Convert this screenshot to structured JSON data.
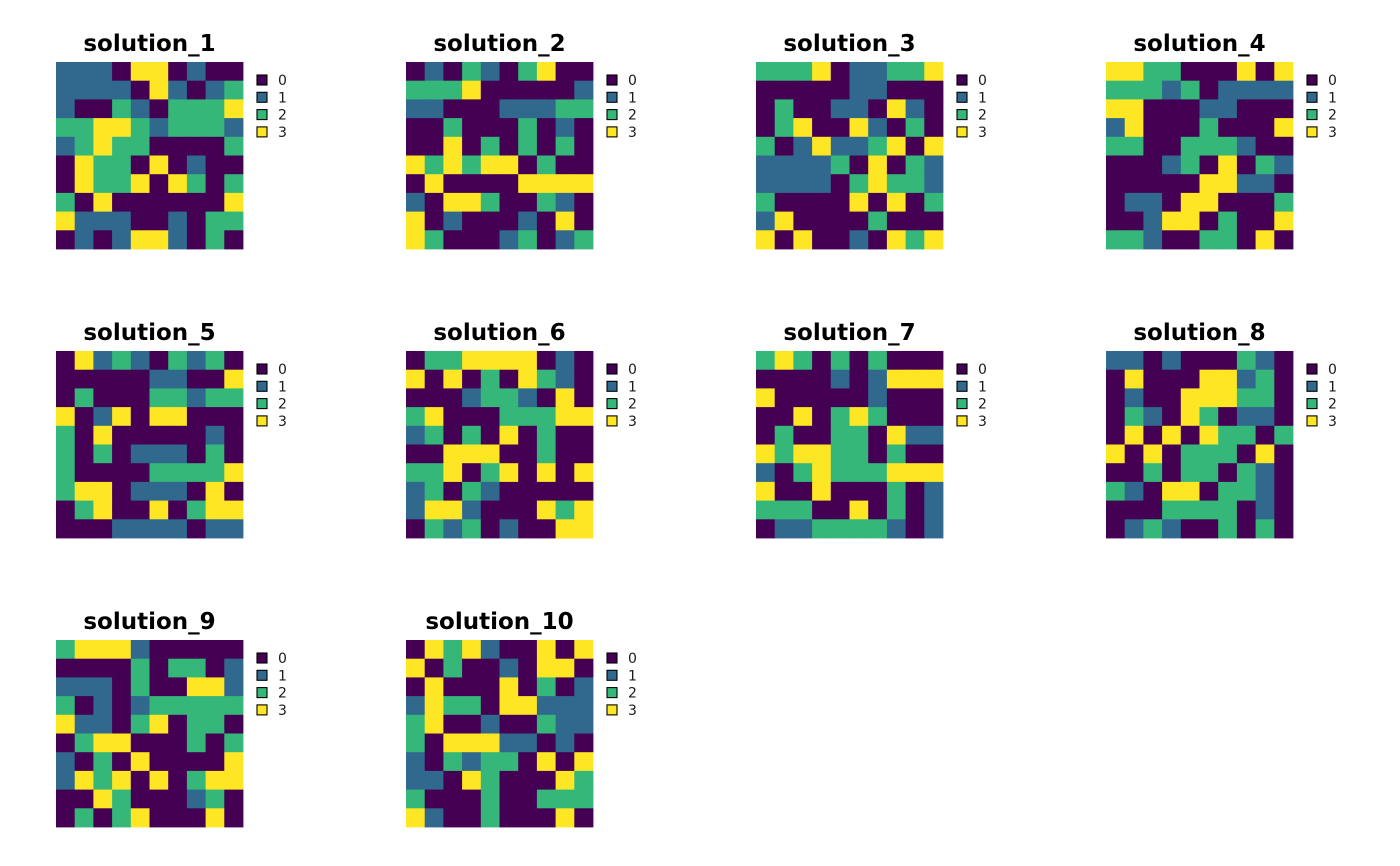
{
  "chart_data": {
    "type": "heatmap",
    "palette": {
      "0": "#440154",
      "1": "#31688E",
      "2": "#35B779",
      "3": "#FDE725",
      "na": "#FFFFFF"
    },
    "legend_labels": [
      "0",
      "1",
      "2",
      "3"
    ],
    "legend_position": "right",
    "panels": [
      {
        "title": "solution_1",
        "grid": [
          "1110330100",
          "1111031012",
          "1002102223",
          "2233212221",
          "1232200002",
          "0322030100",
          "0322303202",
          "2030000003",
          "3111001022",
          "0101331020"
        ]
      },
      {
        "title": "solution_2",
        "grid": [
          "0102102300",
          "2223000001",
          "1100011122",
          "0020002010",
          "0030202020",
          "3232330200",
          "0300003333",
          "1033200210",
          "3010001030",
          "3200012012"
        ]
      },
      {
        "title": "solution_3",
        "grid": [
          "2223011223",
          "0000011000",
          "0200110310",
          "0230031020",
          "2013112303",
          "1111203021",
          "1111023221",
          "2000030302",
          "1300002000",
          "3030010323"
        ]
      },
      {
        "title": "solution_4",
        "grid": [
          "3322000303",
          "2221201111",
          "3300011000",
          "1300020003",
          "2200222100",
          "0001203021",
          "0000033110",
          "0110330002",
          "0013302003",
          "2210022030"
        ]
      },
      {
        "title": "solution_5",
        "grid": [
          "0312102120",
          "0000011003",
          "0200022122",
          "3013033000",
          "2030000010",
          "2020111020",
          "2000022223",
          "2330111030",
          "0230030233",
          "0001111011"
        ]
      },
      {
        "title": "solution_6",
        "grid": [
          "0223333010",
          "3030203210",
          "0001221030",
          "2300022233",
          "1202030200",
          "0033300200",
          "2230230303",
          "1202100000",
          "1331000323",
          "0212010033"
        ]
      },
      {
        "title": "solution_7",
        "grid": [
          "2320202000",
          "0000101333",
          "3000001000",
          "0030232000",
          "0200220311",
          "3233220200",
          "1023222333",
          "3003000201",
          "2220030201",
          "0112222101"
        ]
      },
      {
        "title": "solution_8",
        "grid": [
          "1101000210",
          "0300033120",
          "0100333220",
          "0210320110",
          "0303032202",
          "3030222030",
          "0020220210",
          "2103302210",
          "0002222010",
          "0121002020"
        ]
      },
      {
        "title": "solution_9",
        "grid": [
          "2333100000",
          "0000202201",
          "1110200331",
          "2010122222",
          "3110230220",
          "0233000202",
          "1020300003",
          "1323030233",
          "0032000120",
          "0202300030"
        ]
      },
      {
        "title": "solution_10",
        "grid": [
          "0323100303",
          "3020010330",
          "0300030201",
          "1322033111",
          "2300100211",
          "2033311010",
          "1021220303",
          "1103200032",
          "2000200222",
          "3100200030"
        ]
      }
    ]
  }
}
